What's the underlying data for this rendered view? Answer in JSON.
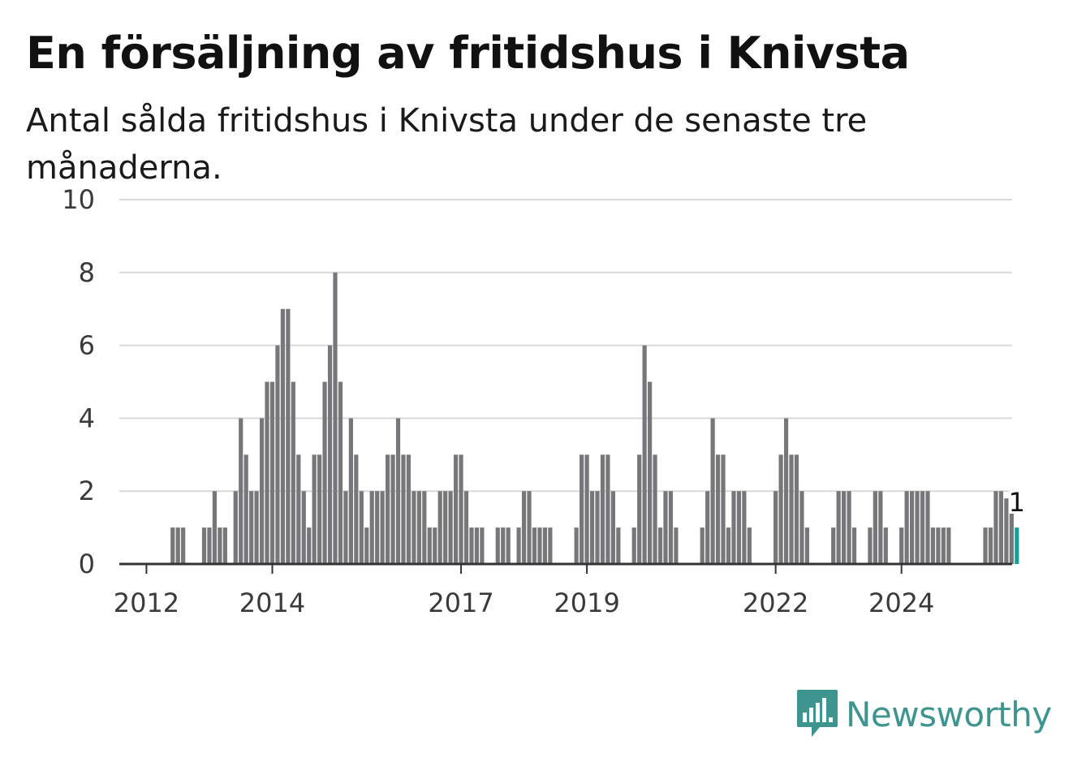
{
  "header": {
    "title": "En försäljning av fritidshus i Knivsta",
    "subtitle": "Antal sålda fritidshus i Knivsta under de senaste tre månaderna."
  },
  "logo": {
    "text": "Newsworthy",
    "icon": "newsworthy-logo-icon"
  },
  "colors": {
    "bar": "#77767b",
    "highlight": "#1b9e9a",
    "grid": "#d9d9d9",
    "axis": "#333333",
    "brand": "#3e958f"
  },
  "chart_data": {
    "type": "bar",
    "title": "En försäljning av fritidshus i Knivsta",
    "subtitle": "Antal sålda fritidshus i Knivsta under de senaste tre månaderna.",
    "xlabel": "",
    "ylabel": "",
    "ylim": [
      0,
      10
    ],
    "yticks": [
      0,
      2,
      4,
      6,
      8,
      10
    ],
    "xticks": [
      "2012",
      "2014",
      "2017",
      "2019",
      "2022",
      "2024"
    ],
    "grid": true,
    "start": "2011-09",
    "frequency": "monthly",
    "values": [
      0,
      0,
      0,
      0,
      0,
      0,
      0,
      0,
      0,
      1,
      1,
      1,
      0,
      0,
      0,
      1,
      1,
      2,
      1,
      1,
      0,
      2,
      4,
      3,
      2,
      2,
      4,
      5,
      5,
      6,
      7,
      7,
      5,
      3,
      2,
      1,
      3,
      3,
      5,
      6,
      8,
      5,
      2,
      4,
      3,
      2,
      1,
      2,
      2,
      2,
      3,
      3,
      4,
      3,
      3,
      2,
      2,
      2,
      1,
      1,
      2,
      2,
      2,
      3,
      3,
      2,
      1,
      1,
      1,
      0,
      0,
      1,
      1,
      1,
      0,
      1,
      2,
      2,
      1,
      1,
      1,
      1,
      0,
      0,
      0,
      0,
      1,
      3,
      3,
      2,
      2,
      3,
      3,
      2,
      1,
      0,
      0,
      1,
      3,
      6,
      5,
      3,
      1,
      2,
      2,
      1,
      0,
      0,
      0,
      0,
      1,
      2,
      4,
      3,
      3,
      1,
      2,
      2,
      2,
      1,
      0,
      0,
      0,
      0,
      2,
      3,
      4,
      3,
      3,
      2,
      1,
      0,
      0,
      0,
      0,
      1,
      2,
      2,
      2,
      1,
      0,
      0,
      1,
      2,
      2,
      1,
      0,
      0,
      1,
      2,
      2,
      2,
      2,
      2,
      1,
      1,
      1,
      1,
      0,
      0,
      0,
      0,
      0,
      0,
      1,
      1,
      2,
      2,
      1.8,
      1.4,
      1
    ],
    "highlight": {
      "value": 1,
      "label": "1"
    }
  }
}
